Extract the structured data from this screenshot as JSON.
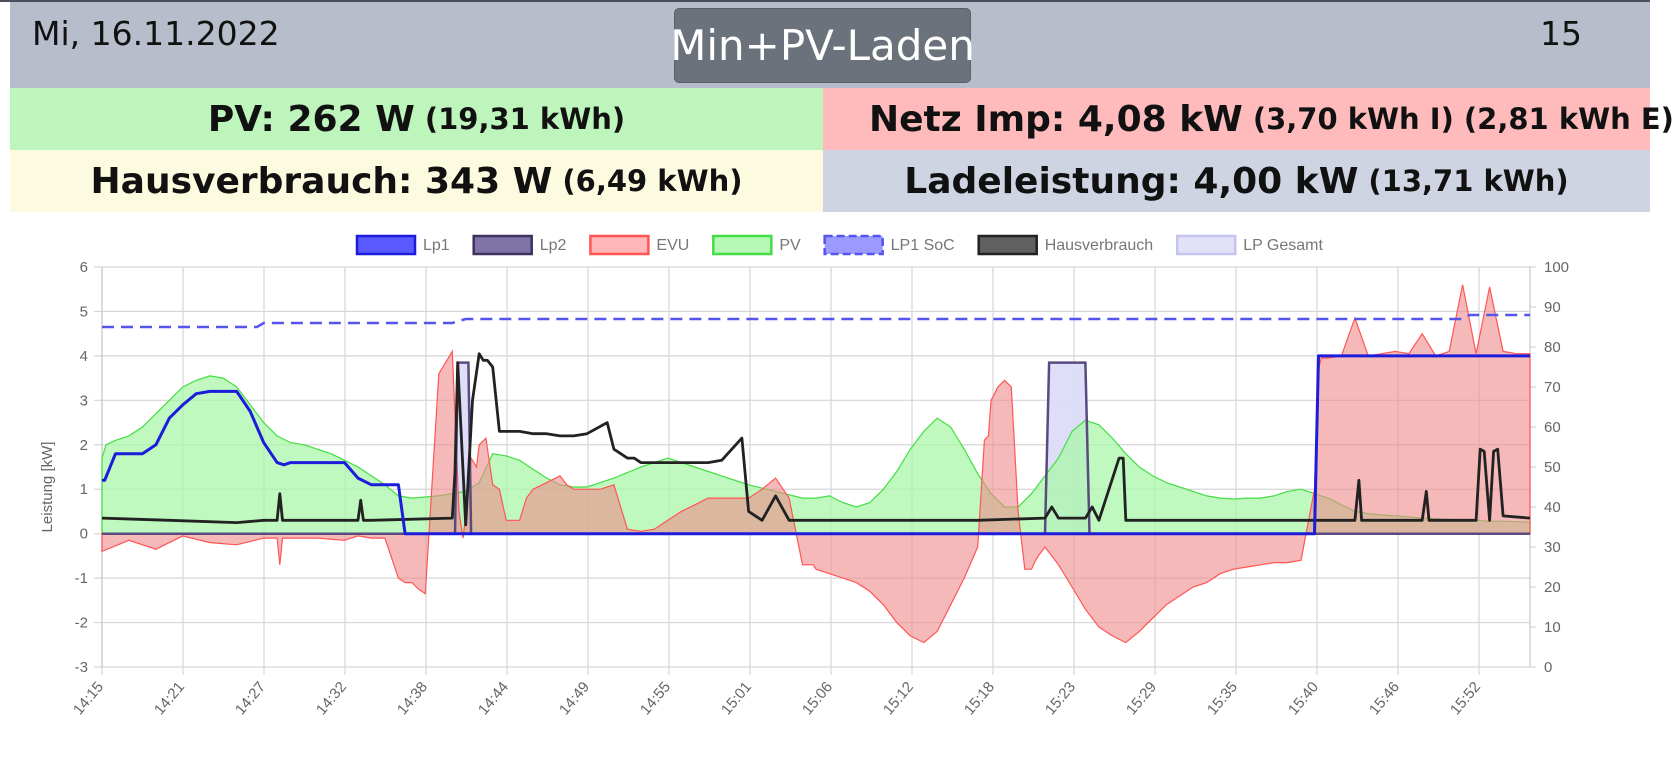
{
  "header": {
    "date": "Mi, 16.11.2022",
    "mode_button": "Min+PV-Laden",
    "time_partial": "15"
  },
  "tiles": {
    "pv": {
      "main": "PV: 262 W",
      "sub": "(19,31 kWh)"
    },
    "grid": {
      "main": "Netz Imp: 4,08 kW",
      "sub": "(3,70 kWh I) (2,81 kWh E)"
    },
    "house": {
      "main": "Hausverbrauch: 343 W",
      "sub": "(6,49 kWh)"
    },
    "charge": {
      "main": "Ladeleistung: 4,00 kW",
      "sub": "(13,71 kWh)"
    }
  },
  "colors": {
    "header_bg": "#b8bdcb",
    "button_bg": "#6c727b",
    "pv_tile": "#bdf5bd",
    "grid_tile": "#ffbbbb",
    "house_tile": "#fdfbdf",
    "charge_tile": "#cfd4e3"
  },
  "chart_data": {
    "type": "line",
    "ylabel": "Leistung [kW]",
    "ylim": [
      -3,
      6
    ],
    "y_ticks": [
      "6",
      "5",
      "4",
      "3",
      "2",
      "1",
      "0",
      "-1",
      "-2",
      "-3"
    ],
    "y2lim": [
      0,
      100
    ],
    "y2_ticks": [
      "100",
      "90",
      "80",
      "70",
      "60",
      "50",
      "40",
      "30",
      "20",
      "10",
      "0"
    ],
    "x_ticks": [
      "14:15",
      "14:21",
      "14:27",
      "14:32",
      "14:38",
      "14:44",
      "14:49",
      "14:55",
      "15:01",
      "15:06",
      "15:12",
      "15:18",
      "15:23",
      "15:29",
      "15:35",
      "15:40",
      "15:46",
      "15:52"
    ],
    "x_range_minutes": [
      0,
      106
    ],
    "grid": true,
    "legend_position": "top",
    "legend": [
      {
        "label": "Lp1",
        "fill": "#3c3cff",
        "stroke": "#1c1cdc",
        "dashed": false
      },
      {
        "label": "Lp2",
        "fill": "#6a5a96",
        "stroke": "#3e325e",
        "dashed": false
      },
      {
        "label": "EVU",
        "fill": "#ffaaaa",
        "stroke": "#ff5555",
        "dashed": false
      },
      {
        "label": "PV",
        "fill": "#a9f7a9",
        "stroke": "#44dd44",
        "dashed": false
      },
      {
        "label": "LP1 SoC",
        "fill": "#8a8aff",
        "stroke": "#5555ee",
        "dashed": true
      },
      {
        "label": "Hausverbrauch",
        "fill": "#444444",
        "stroke": "#222222",
        "dashed": false
      },
      {
        "label": "LP Gesamt",
        "fill": "#dcdcf8",
        "stroke": "#c4c4ee",
        "dashed": false
      }
    ],
    "series": [
      {
        "name": "PV",
        "x": [
          0,
          0.3,
          1,
          2,
          3,
          4,
          5,
          6,
          7,
          8,
          9,
          10,
          11,
          12,
          13,
          14,
          15,
          16,
          17,
          18,
          19,
          20,
          21,
          22,
          23,
          25,
          27,
          28,
          29,
          30,
          31,
          32,
          33,
          34,
          35,
          36,
          37,
          38,
          40,
          42,
          44,
          46,
          48,
          50,
          52,
          53,
          54,
          55,
          56,
          57,
          58,
          59,
          60,
          61,
          62,
          63,
          64,
          65,
          66,
          67,
          68,
          69,
          70,
          71,
          72,
          73,
          74,
          75,
          76,
          77,
          78,
          79,
          80,
          81,
          82,
          83,
          84,
          85,
          86,
          87,
          88,
          89,
          90,
          91,
          92,
          93,
          94,
          95,
          96,
          97,
          98,
          99,
          100,
          101,
          102,
          103,
          104,
          105,
          106
        ],
        "y": [
          1.7,
          2.0,
          2.1,
          2.2,
          2.4,
          2.7,
          3.0,
          3.3,
          3.45,
          3.55,
          3.5,
          3.3,
          2.9,
          2.5,
          2.2,
          2.05,
          2.0,
          1.9,
          1.8,
          1.65,
          1.5,
          1.3,
          1.1,
          0.85,
          0.8,
          0.85,
          0.95,
          1.15,
          1.8,
          1.75,
          1.65,
          1.45,
          1.25,
          1.1,
          1.05,
          1.05,
          1.15,
          1.25,
          1.5,
          1.7,
          1.5,
          1.3,
          1.1,
          0.95,
          0.8,
          0.8,
          0.85,
          0.7,
          0.6,
          0.7,
          1.0,
          1.4,
          1.9,
          2.3,
          2.6,
          2.4,
          1.9,
          1.35,
          0.9,
          0.6,
          0.6,
          0.9,
          1.3,
          1.7,
          2.3,
          2.55,
          2.45,
          2.15,
          1.8,
          1.5,
          1.3,
          1.15,
          1.05,
          0.95,
          0.85,
          0.8,
          0.78,
          0.8,
          0.8,
          0.85,
          0.95,
          1.0,
          0.9,
          0.8,
          0.65,
          0.5,
          0.45,
          0.42,
          0.4,
          0.38,
          0.35,
          0.34,
          0.32,
          0.31,
          0.3,
          0.28,
          0.28,
          0.27,
          0.26
        ]
      },
      {
        "name": "EVU",
        "x": [
          0,
          2,
          4,
          6,
          8,
          10,
          12,
          13,
          13.2,
          13.4,
          14,
          16,
          18,
          19,
          20,
          21,
          22,
          22.5,
          22.7,
          23,
          23.5,
          24,
          25,
          26,
          26.5,
          26.8,
          27,
          27.4,
          27.8,
          28,
          28.5,
          29,
          29.5,
          30,
          30.4,
          30.8,
          31,
          31.5,
          32,
          33,
          34,
          34.5,
          35,
          36,
          37,
          38,
          39,
          40,
          41,
          42,
          43,
          44,
          45,
          46,
          47,
          48,
          49,
          50,
          51,
          52,
          52.4,
          52.8,
          53,
          54,
          55,
          56,
          57,
          58,
          59,
          60,
          61,
          62,
          63,
          64,
          65,
          65.5,
          65.8,
          66,
          66.5,
          67,
          67.5,
          68,
          68.5,
          69,
          69.3,
          69.5,
          70,
          71,
          72,
          73,
          74,
          75,
          76,
          77,
          78,
          79,
          80,
          81,
          82,
          83,
          84,
          85,
          86,
          87,
          88,
          89,
          90,
          90.3,
          90.5,
          91,
          92,
          93,
          94,
          95,
          96,
          97,
          98,
          99,
          100,
          101,
          102,
          103,
          104,
          105,
          106
        ],
        "y": [
          -0.4,
          -0.15,
          -0.35,
          -0.05,
          -0.2,
          -0.25,
          -0.1,
          -0.1,
          -0.7,
          -0.1,
          -0.1,
          -0.1,
          -0.15,
          -0.05,
          -0.1,
          -0.1,
          -1.0,
          -1.1,
          -1.1,
          -1.1,
          -1.25,
          -1.35,
          3.6,
          4.1,
          0.5,
          -0.1,
          0.4,
          1.7,
          1.5,
          2.0,
          2.15,
          1.1,
          1.0,
          0.3,
          0.3,
          0.3,
          0.3,
          0.8,
          1.0,
          1.15,
          1.3,
          1.1,
          1.0,
          1.0,
          1.0,
          1.1,
          0.1,
          0.05,
          0.1,
          0.3,
          0.5,
          0.65,
          0.8,
          0.8,
          0.8,
          0.8,
          1.0,
          1.25,
          0.8,
          -0.7,
          -0.7,
          -0.7,
          -0.8,
          -0.9,
          -1.0,
          -1.1,
          -1.3,
          -1.6,
          -2.0,
          -2.3,
          -2.45,
          -2.2,
          -1.6,
          -1.0,
          -0.3,
          2.1,
          2.2,
          3.0,
          3.3,
          3.45,
          3.3,
          0.5,
          -0.8,
          -0.8,
          -0.6,
          -0.5,
          -0.3,
          -0.7,
          -1.2,
          -1.7,
          -2.1,
          -2.3,
          -2.45,
          -2.2,
          -1.9,
          -1.6,
          -1.4,
          -1.2,
          -1.1,
          -0.9,
          -0.8,
          -0.75,
          -0.7,
          -0.65,
          -0.65,
          -0.6,
          1.0,
          3.7,
          3.95,
          3.95,
          4.0,
          4.85,
          4.0,
          4.05,
          4.1,
          4.05,
          4.5,
          4.0,
          4.1,
          5.6,
          4.05,
          5.55,
          4.1,
          4.05,
          4.05
        ]
      },
      {
        "name": "Lp1",
        "x": [
          0,
          0.2,
          1,
          2,
          3,
          4,
          5,
          6,
          7,
          8,
          9,
          10,
          11,
          12,
          13,
          13.5,
          14,
          15,
          16,
          17,
          18,
          19,
          20,
          20.3,
          21,
          22,
          22.5,
          41,
          42,
          44,
          46,
          47,
          47.5,
          47.8,
          48,
          56,
          57,
          63,
          64,
          66,
          66.3,
          80,
          81,
          87,
          88,
          90,
          90.3,
          91,
          106
        ],
        "y": [
          1.2,
          1.2,
          1.8,
          1.8,
          1.8,
          2.0,
          2.6,
          2.9,
          3.15,
          3.2,
          3.2,
          3.2,
          2.75,
          2.05,
          1.6,
          1.55,
          1.6,
          1.6,
          1.6,
          1.6,
          1.6,
          1.25,
          1.1,
          1.1,
          1.1,
          1.1,
          0.0,
          0.0,
          0.0,
          0.0,
          0.0,
          0.0,
          0.0,
          0.0,
          0.0,
          0.0,
          0.0,
          0.0,
          0.0,
          0.0,
          0.0,
          0.0,
          0.0,
          0.0,
          0.0,
          0.0,
          4.0,
          4.0,
          4.0
        ]
      },
      {
        "name": "Lp2",
        "x": [
          0,
          26.2,
          26.4,
          27.2,
          27.4,
          70,
          70.3,
          72,
          73,
          73.3,
          106
        ],
        "y": [
          0,
          0,
          3.85,
          3.85,
          0,
          0,
          3.85,
          3.85,
          3.85,
          0,
          0
        ]
      },
      {
        "name": "LP1 SoC",
        "x": [
          0,
          11.5,
          12,
          26,
          27,
          101,
          101.5,
          106
        ],
        "y": [
          85,
          85,
          86,
          86,
          87,
          87,
          88,
          88
        ]
      },
      {
        "name": "Hausverbrauch",
        "x": [
          0,
          5,
          10,
          12,
          13,
          13.2,
          13.4,
          14,
          19,
          19.2,
          19.4,
          20,
          26,
          26.2,
          26.4,
          27,
          27.5,
          28,
          28.3,
          28.6,
          29,
          29.5,
          30,
          31,
          32,
          33,
          34,
          35,
          36,
          37.5,
          38,
          39,
          39.5,
          40,
          41,
          42,
          43,
          44,
          45,
          46,
          47.5,
          48,
          49,
          50,
          51,
          52,
          52.5,
          53,
          53.5,
          54,
          55,
          60,
          65,
          70,
          70.5,
          71,
          73,
          73.5,
          74,
          75.5,
          75.8,
          76,
          76.5,
          80,
          85,
          90,
          93,
          93.3,
          93.5,
          98,
          98.3,
          98.5,
          102,
          102.3,
          102.6,
          103,
          103.3,
          103.6,
          104,
          106
        ],
        "y": [
          0.35,
          0.3,
          0.25,
          0.3,
          0.3,
          0.9,
          0.3,
          0.3,
          0.3,
          0.75,
          0.3,
          0.3,
          0.35,
          1.4,
          3.85,
          0.2,
          3.0,
          4.05,
          3.9,
          3.9,
          3.75,
          2.3,
          2.3,
          2.3,
          2.25,
          2.25,
          2.2,
          2.2,
          2.25,
          2.5,
          1.9,
          1.7,
          1.7,
          1.6,
          1.6,
          1.6,
          1.6,
          1.6,
          1.6,
          1.65,
          2.15,
          0.5,
          0.3,
          0.85,
          0.3,
          0.3,
          0.3,
          0.3,
          0.3,
          0.3,
          0.3,
          0.3,
          0.3,
          0.35,
          0.6,
          0.35,
          0.35,
          0.6,
          0.3,
          1.7,
          1.7,
          0.3,
          0.3,
          0.3,
          0.3,
          0.3,
          0.3,
          1.2,
          0.3,
          0.3,
          0.95,
          0.3,
          0.3,
          1.9,
          1.85,
          0.3,
          1.85,
          1.9,
          0.4,
          0.35
        ]
      }
    ]
  }
}
